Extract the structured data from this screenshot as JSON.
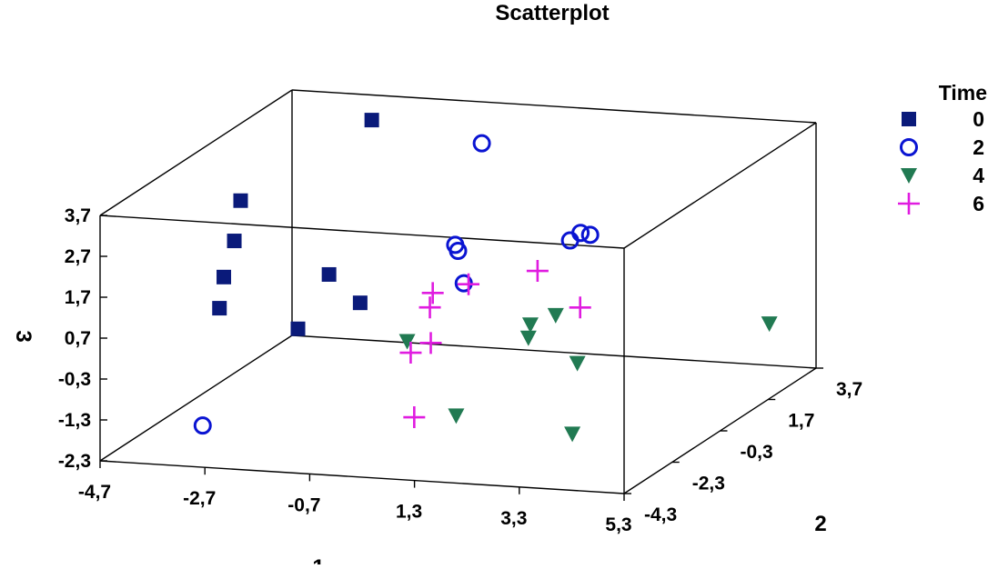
{
  "chart_data": {
    "type": "scatter3d",
    "title": "Scatterplot",
    "xlabel": "1",
    "ylabel": "2",
    "zlabel": "3",
    "xlim": [
      -4.7,
      5.3
    ],
    "ylim": [
      -4.3,
      3.7
    ],
    "zlim": [
      -2.3,
      3.7
    ],
    "x_ticks": [
      "-4,7",
      "-2,7",
      "-0,7",
      "1,3",
      "3,3",
      "5,3"
    ],
    "y_ticks": [
      "-4,3",
      "-2,3",
      "-0,3",
      "1,7",
      "3,7"
    ],
    "z_ticks": [
      "-2,3",
      "-1,3",
      "-0,3",
      "0,7",
      "1,7",
      "2,7",
      "3,7"
    ],
    "legend": {
      "title": "Time",
      "position": "right"
    },
    "series": [
      {
        "name": "0",
        "marker": "square",
        "color": "#0a1a7a",
        "points": [
          {
            "x": -3.3,
            "y": -1.5,
            "z": 3.1
          },
          {
            "x": -3.1,
            "y": -2.2,
            "z": 2.4
          },
          {
            "x": -3.3,
            "y": -2.2,
            "z": 1.5
          },
          {
            "x": -3.2,
            "y": -2.6,
            "z": 0.9
          },
          {
            "x": -2.3,
            "y": 0.0,
            "z": 0.8
          },
          {
            "x": -3.9,
            "y": 2.2,
            "z": -1.5
          },
          {
            "x": -3.4,
            "y": 3.7,
            "z": -1.4
          },
          {
            "x": -2.4,
            "y": 2.0,
            "z": 3.8
          }
        ]
      },
      {
        "name": "2",
        "marker": "circle",
        "color": "#0a14d2",
        "points": [
          {
            "x": -3.2,
            "y": -3.3,
            "z": -1.7
          },
          {
            "x": -0.3,
            "y": 2.0,
            "z": 3.4
          },
          {
            "x": 0.2,
            "y": -0.2,
            "z": 1.8
          },
          {
            "x": 0.3,
            "y": -0.3,
            "z": 1.7
          },
          {
            "x": 0.5,
            "y": -0.5,
            "z": 1.0
          },
          {
            "x": 2.3,
            "y": 0.0,
            "z": 2.0
          },
          {
            "x": 2.5,
            "y": 0.0,
            "z": 2.2
          },
          {
            "x": 2.5,
            "y": 0.4,
            "z": 2.0
          }
        ]
      },
      {
        "name": "4",
        "marker": "triangle-down",
        "color": "#217a52",
        "points": [
          {
            "x": -0.9,
            "y": 0.2,
            "z": -0.8
          },
          {
            "x": 1.5,
            "y": -3.0,
            "z": -1.2
          },
          {
            "x": 3.9,
            "y": -3.4,
            "z": -1.3
          },
          {
            "x": 4.5,
            "y": -4.5,
            "z": 0.9
          },
          {
            "x": 4.5,
            "y": 3.5,
            "z": -1.2
          },
          {
            "x": 2.0,
            "y": -1.0,
            "z": 0.3
          },
          {
            "x": 2.1,
            "y": -1.3,
            "z": 0.1
          },
          {
            "x": 2.3,
            "y": -0.6,
            "z": 0.4
          }
        ]
      },
      {
        "name": "6",
        "marker": "plus",
        "color": "#e01ce0",
        "points": [
          {
            "x": -0.1,
            "y": -1.4,
            "z": -0.4
          },
          {
            "x": 0.1,
            "y": -1.0,
            "z": -0.3
          },
          {
            "x": 0.7,
            "y": -3.0,
            "z": -1.3
          },
          {
            "x": -0.1,
            "y": -0.6,
            "z": 0.4
          },
          {
            "x": 0.0,
            "y": -0.7,
            "z": 0.8
          },
          {
            "x": 0.5,
            "y": -0.3,
            "z": 0.9
          },
          {
            "x": 2.0,
            "y": -0.7,
            "z": 1.5
          },
          {
            "x": 3.5,
            "y": -2.2,
            "z": 1.3
          }
        ]
      }
    ]
  }
}
